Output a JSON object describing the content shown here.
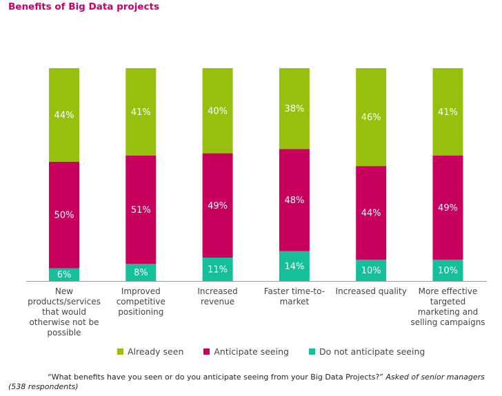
{
  "title": "Benefits of Big Data projects",
  "colors": {
    "already_seen": "#97bf0d",
    "anticipate": "#c8005e",
    "not_anticipate": "#14bf9a",
    "axis": "#9a9a9a"
  },
  "chart_data": {
    "type": "bar",
    "stacked": true,
    "orientation": "vertical",
    "categories": [
      "New products/services that would otherwise not be possible",
      "Improved competitive positioning",
      "Increased revenue",
      "Faster time-to-market",
      "Increased quality",
      "More effective targeted marketing and selling campaigns"
    ],
    "category_lines": [
      [
        "New",
        "products/services",
        "that would",
        "otherwise not be",
        "possible"
      ],
      [
        "Improved",
        "competitive",
        "positioning"
      ],
      [
        "Increased",
        "revenue"
      ],
      [
        "Faster time-to-",
        "market"
      ],
      [
        "Increased quality"
      ],
      [
        "More effective",
        "targeted",
        "marketing and",
        "selling campaigns"
      ]
    ],
    "series": [
      {
        "name": "Do not anticipate seeing",
        "values": [
          6,
          8,
          11,
          14,
          10,
          10
        ]
      },
      {
        "name": "Anticipate seeing",
        "values": [
          50,
          51,
          49,
          48,
          44,
          49
        ]
      },
      {
        "name": "Already seen",
        "values": [
          44,
          41,
          40,
          38,
          46,
          41
        ]
      }
    ],
    "data_label_suffix": "%",
    "ylim": [
      0,
      100
    ],
    "legend_position": "bottom",
    "grid": false
  },
  "legend": [
    {
      "label": "Already seen",
      "color_key": "already_seen"
    },
    {
      "label": "Anticipate seeing",
      "color_key": "anticipate"
    },
    {
      "label": "Do not anticipate seeing",
      "color_key": "not_anticipate"
    }
  ],
  "footnote": {
    "question": "“What benefits have you seen or do you anticipate seeing from your Big Data Projects?”",
    "note": "Asked of senior managers (538 respondents)"
  }
}
